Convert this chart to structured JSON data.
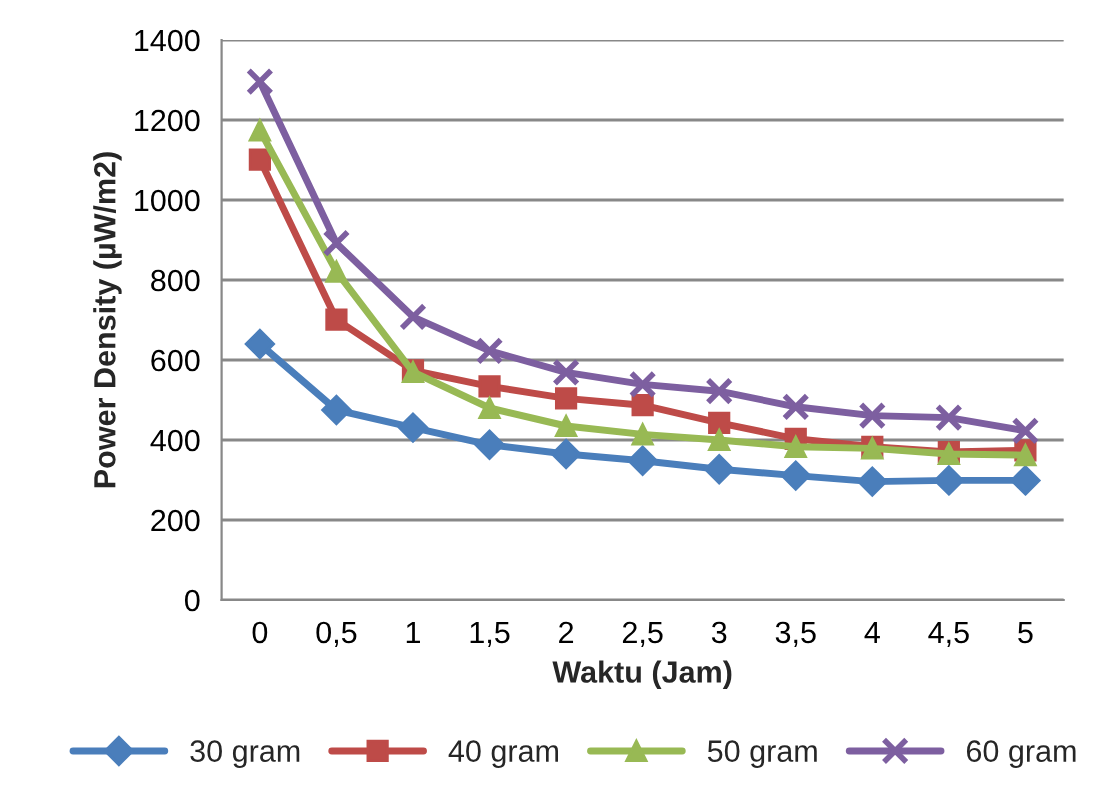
{
  "chart_data": {
    "type": "line",
    "xlabel": "Waktu (Jam)",
    "ylabel": "Power Density (µW/m2)",
    "categories": [
      "0",
      "0,5",
      "1",
      "1,5",
      "2",
      "2,5",
      "3",
      "3,5",
      "4",
      "4,5",
      "5"
    ],
    "series": [
      {
        "name": "30 gram",
        "color": "#4a7ebb",
        "marker": "diamond",
        "values": [
          640,
          475,
          431,
          388,
          365,
          348,
          327,
          311,
          296,
          299,
          299
        ]
      },
      {
        "name": "40 gram",
        "color": "#be4b48",
        "marker": "square",
        "values": [
          1101,
          701,
          574,
          534,
          504,
          487,
          443,
          403,
          383,
          370,
          374
        ]
      },
      {
        "name": "50 gram",
        "color": "#98b954",
        "marker": "triangle",
        "values": [
          1174,
          821,
          570,
          480,
          435,
          414,
          400,
          383,
          379,
          365,
          362
        ]
      },
      {
        "name": "60 gram",
        "color": "#7d5fa0",
        "marker": "cross",
        "values": [
          1296,
          892,
          708,
          623,
          569,
          539,
          522,
          483,
          461,
          456,
          423
        ]
      }
    ],
    "ylim": [
      0,
      1400
    ],
    "yticks": [
      0,
      200,
      400,
      600,
      800,
      1000,
      1200,
      1400
    ],
    "grid": "y",
    "legend": "bottom"
  }
}
